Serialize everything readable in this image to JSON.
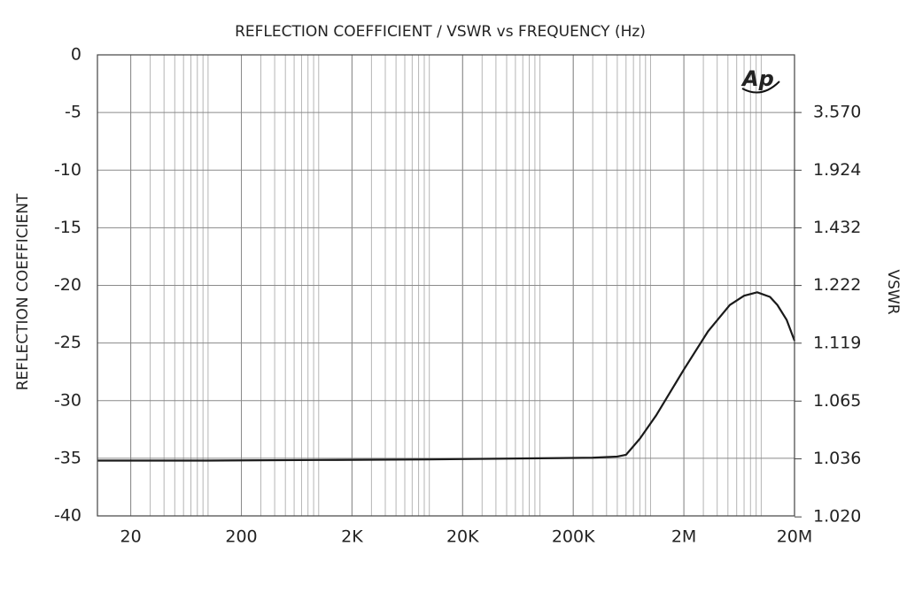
{
  "chart_data": {
    "type": "line",
    "title": "REFLECTION COEFFICIENT / VSWR vs FREQUENCY (Hz)",
    "ylabel": "REFLECTION COEFFICIENT",
    "y2label": "VSWR",
    "logo": "Ap",
    "xscale": "log",
    "x_minor_grid": true,
    "grid": true,
    "y2scale": "vswr",
    "xlim": [
      10,
      20000000
    ],
    "xticks": [
      20,
      200,
      {
        "value": 2000,
        "label": "2K"
      },
      {
        "value": 20000,
        "label": "20K"
      },
      {
        "value": 200000,
        "label": "200K"
      },
      {
        "value": 2000000,
        "label": "2M"
      },
      {
        "value": 20000000,
        "label": "20M"
      }
    ],
    "ylim": [
      -40,
      0
    ],
    "yticks": [
      0,
      -5,
      -10,
      -15,
      -20,
      -25,
      -30,
      -35,
      -40
    ],
    "y2ticks": [
      {
        "value": 3.57,
        "label": "3.570"
      },
      1.924,
      1.432,
      1.222,
      1.119,
      1.065,
      1.036,
      {
        "value": 1.02,
        "label": "1.020"
      }
    ],
    "x": [
      10,
      100,
      1000,
      10000,
      100000,
      300000,
      500000,
      600000,
      800000,
      1120000,
      2000000,
      3300000,
      5200000,
      7000000,
      9200000,
      12000000,
      14000000,
      17000000,
      20000000
    ],
    "series": [
      {
        "name": "Reflection coefficient",
        "color": "#1a1a1a",
        "values": [
          -35.2,
          -35.2,
          -35.15,
          -35.1,
          -35.0,
          -34.95,
          -34.85,
          -34.7,
          -33.3,
          -31.3,
          -27.3,
          -24.0,
          -21.7,
          -20.9,
          -20.6,
          -21.0,
          -21.7,
          -23.0,
          -24.8
        ]
      }
    ]
  }
}
